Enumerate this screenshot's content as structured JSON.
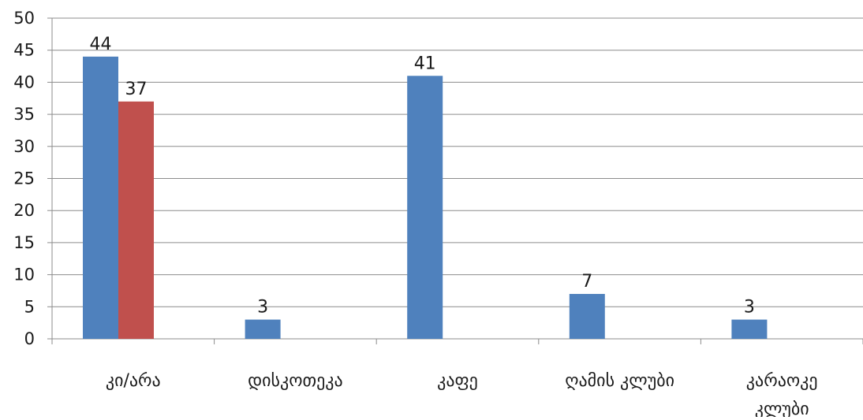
{
  "chart_data": {
    "type": "bar",
    "categories": [
      "კი/არა",
      "დისკოთეკა",
      "კაფე",
      "ღამის კლუბი",
      "კარაოკე კლუბი"
    ],
    "category_lines": [
      [
        "კი/არა"
      ],
      [
        "დისკოთეკა"
      ],
      [
        "კაფე"
      ],
      [
        "ღამის კლუბი"
      ],
      [
        "კარაოკე",
        "კლუბი"
      ]
    ],
    "series": [
      {
        "values": [
          44,
          3,
          41,
          7,
          3
        ],
        "color": "#4f81bd"
      },
      {
        "values": [
          37,
          null,
          null,
          null,
          null
        ],
        "color": "#c0504d"
      }
    ],
    "ylim": [
      0,
      50
    ],
    "yticks": [
      0,
      5,
      10,
      15,
      20,
      25,
      30,
      35,
      40,
      45,
      50
    ],
    "grid": true,
    "gridline_color": "#8c8c8c",
    "axis_color": "#8c8c8c",
    "title": "",
    "xlabel": "",
    "ylabel": ""
  }
}
